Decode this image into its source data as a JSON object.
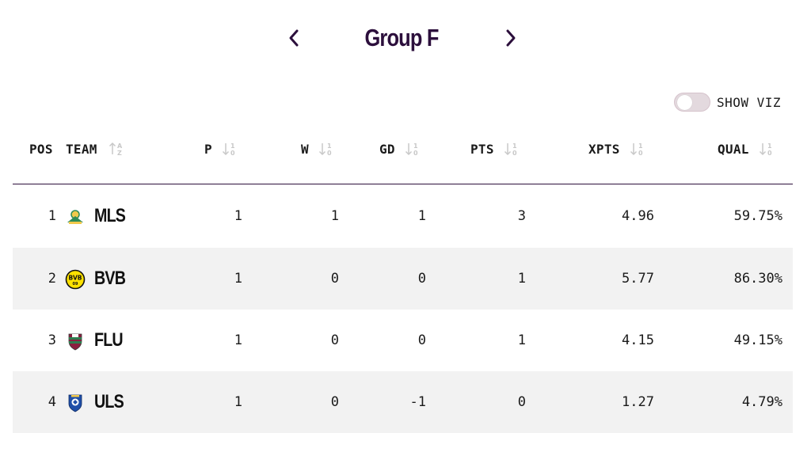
{
  "header": {
    "group_title": "Group F"
  },
  "toggle": {
    "label": "SHOW VIZ",
    "enabled": false
  },
  "columns": {
    "pos": "POS",
    "team": "TEAM",
    "p": "P",
    "w": "W",
    "gd": "GD",
    "pts": "PTS",
    "xpts": "XPTS",
    "qual": "QUAL"
  },
  "rows": [
    {
      "pos": "1",
      "team": "MLS",
      "logo": "sundowns-crest-icon",
      "p": "1",
      "w": "1",
      "gd": "1",
      "pts": "3",
      "xpts": "4.96",
      "qual": "59.75%"
    },
    {
      "pos": "2",
      "team": "BVB",
      "logo": "bvb-crest-icon",
      "p": "1",
      "w": "0",
      "gd": "0",
      "pts": "1",
      "xpts": "5.77",
      "qual": "86.30%"
    },
    {
      "pos": "3",
      "team": "FLU",
      "logo": "fluminense-crest-icon",
      "p": "1",
      "w": "0",
      "gd": "0",
      "pts": "1",
      "xpts": "4.15",
      "qual": "49.15%"
    },
    {
      "pos": "4",
      "team": "ULS",
      "logo": "ulsan-crest-icon",
      "p": "1",
      "w": "0",
      "gd": "-1",
      "pts": "0",
      "xpts": "1.27",
      "qual": "4.79%"
    }
  ],
  "colors": {
    "title": "#2c0f3c",
    "row_alt": "#f2f2f2",
    "toggle_track": "#e3d9de"
  }
}
